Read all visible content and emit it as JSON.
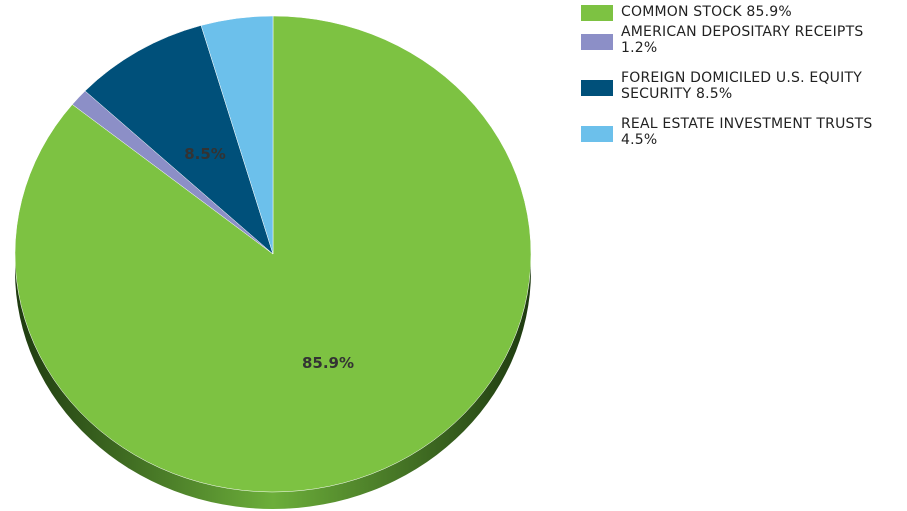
{
  "chart_data": {
    "type": "pie",
    "slices": [
      {
        "label": "COMMON STOCK",
        "value": 85.9,
        "value_label": "85.9%",
        "color": "#7dc242"
      },
      {
        "label": "AMERICAN DEPOSITARY RECEIPTS",
        "value": 1.2,
        "value_label": "1.2%",
        "color": "#8c8fc7"
      },
      {
        "label": "FOREIGN DOMICILED U.S. EQUITY SECURITY",
        "value": 8.5,
        "value_label": "8.5%",
        "color": "#00507a"
      },
      {
        "label": "REAL ESTATE INVESTMENT TRUSTS",
        "value": 4.5,
        "value_label": "4.5%",
        "color": "#6cc0eb"
      }
    ],
    "data_labels": [
      "85.9%",
      "8.5%"
    ],
    "legend": {
      "position": "top-right",
      "entries": [
        {
          "line1": "COMMON STOCK 85.9%",
          "line2": ""
        },
        {
          "line1": "AMERICAN DEPOSITARY RECEIPTS",
          "line2": "1.2%"
        },
        {
          "line1": "FOREIGN DOMICILED U.S. EQUITY",
          "line2": "SECURITY 8.5%"
        },
        {
          "line1": "REAL ESTATE INVESTMENT TRUSTS",
          "line2": "4.5%"
        }
      ]
    },
    "style": "3d-pie"
  }
}
